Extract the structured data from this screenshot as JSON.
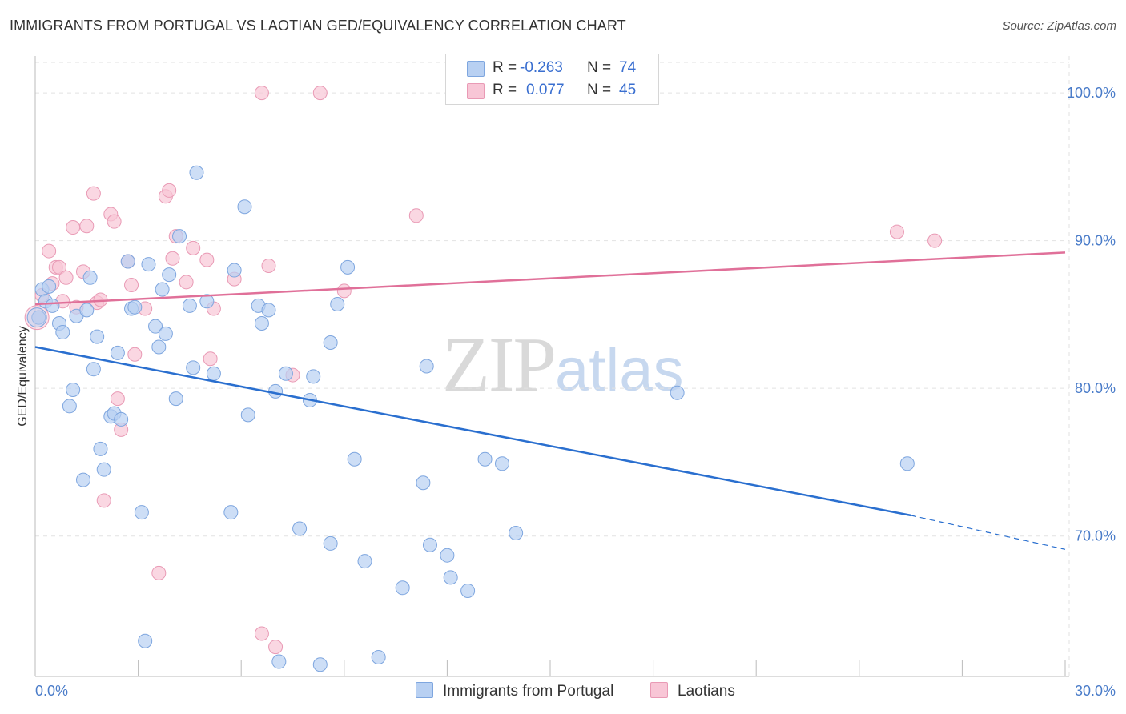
{
  "header": {
    "title": "IMMIGRANTS FROM PORTUGAL VS LAOTIAN GED/EQUIVALENCY CORRELATION CHART",
    "source": "Source: ZipAtlas.com"
  },
  "legend": {
    "rows": [
      {
        "r_label": "R =",
        "r_value": "-0.263",
        "n_label": "N =",
        "n_value": "74"
      },
      {
        "r_label": "R =",
        "r_value": "0.077",
        "n_label": "N =",
        "n_value": "45"
      }
    ],
    "bottom": [
      "Immigrants from Portugal",
      "Laotians"
    ]
  },
  "watermark": {
    "part1": "ZIP",
    "part2": "atlas"
  },
  "colors": {
    "blue_fill": "#b8d0f2",
    "blue_stroke": "#7ea6df",
    "blue_line": "#2a6fcf",
    "pink_fill": "#f8c6d6",
    "pink_stroke": "#e99ab5",
    "pink_line": "#e07099",
    "tick_text": "#4a7cc9",
    "grid": "#e2e2e2"
  },
  "chart_data": {
    "type": "scatter",
    "title": "IMMIGRANTS FROM PORTUGAL VS LAOTIAN GED/EQUIVALENCY CORRELATION CHART",
    "xlabel": "",
    "ylabel": "GED/Equivalency",
    "xlim": [
      0,
      30
    ],
    "ylim": [
      60.5,
      102.5
    ],
    "x_tick_labels": [
      {
        "value": 0,
        "label": "0.0%"
      },
      {
        "value": 30,
        "label": "30.0%"
      }
    ],
    "y_tick_labels": [
      {
        "value": 100,
        "label": "100.0%"
      },
      {
        "value": 90,
        "label": "90.0%"
      },
      {
        "value": 80,
        "label": "80.0%"
      },
      {
        "value": 70,
        "label": "70.0%"
      }
    ],
    "grid": true,
    "series": [
      {
        "name": "Immigrants from Portugal",
        "color": "blue",
        "points": [
          [
            0.2,
            86.7
          ],
          [
            0.3,
            85.9
          ],
          [
            0.4,
            86.9
          ],
          [
            0.5,
            85.6
          ],
          [
            0.7,
            84.4
          ],
          [
            0.8,
            83.8
          ],
          [
            1.0,
            78.8
          ],
          [
            1.1,
            79.9
          ],
          [
            1.2,
            84.9
          ],
          [
            1.4,
            73.8
          ],
          [
            1.5,
            85.3
          ],
          [
            1.6,
            87.5
          ],
          [
            1.7,
            81.3
          ],
          [
            1.8,
            83.5
          ],
          [
            1.9,
            75.9
          ],
          [
            2.0,
            74.5
          ],
          [
            2.2,
            78.1
          ],
          [
            2.3,
            78.3
          ],
          [
            2.4,
            82.4
          ],
          [
            2.5,
            77.9
          ],
          [
            2.7,
            88.6
          ],
          [
            2.8,
            85.4
          ],
          [
            2.9,
            85.5
          ],
          [
            3.1,
            71.6
          ],
          [
            3.2,
            62.9
          ],
          [
            3.3,
            88.4
          ],
          [
            3.5,
            84.2
          ],
          [
            3.6,
            82.8
          ],
          [
            3.7,
            86.7
          ],
          [
            3.8,
            83.7
          ],
          [
            3.9,
            87.7
          ],
          [
            4.1,
            79.3
          ],
          [
            4.2,
            90.3
          ],
          [
            4.5,
            85.6
          ],
          [
            4.6,
            81.4
          ],
          [
            4.7,
            94.6
          ],
          [
            5.0,
            85.9
          ],
          [
            5.2,
            81.0
          ],
          [
            5.7,
            71.6
          ],
          [
            5.8,
            88.0
          ],
          [
            6.1,
            92.3
          ],
          [
            6.2,
            78.2
          ],
          [
            6.5,
            85.6
          ],
          [
            6.6,
            84.4
          ],
          [
            6.8,
            85.3
          ],
          [
            7.0,
            79.8
          ],
          [
            7.1,
            61.5
          ],
          [
            7.3,
            81.0
          ],
          [
            7.7,
            70.5
          ],
          [
            8.0,
            79.2
          ],
          [
            8.1,
            80.8
          ],
          [
            8.3,
            61.3
          ],
          [
            8.6,
            69.5
          ],
          [
            8.6,
            83.1
          ],
          [
            8.8,
            85.7
          ],
          [
            9.1,
            88.2
          ],
          [
            9.3,
            75.2
          ],
          [
            9.6,
            68.3
          ],
          [
            10.0,
            61.8
          ],
          [
            10.7,
            66.5
          ],
          [
            11.3,
            73.6
          ],
          [
            11.4,
            81.5
          ],
          [
            11.5,
            69.4
          ],
          [
            12.0,
            68.7
          ],
          [
            12.1,
            67.2
          ],
          [
            12.6,
            66.3
          ],
          [
            13.1,
            75.2
          ],
          [
            13.6,
            74.9
          ],
          [
            13.9,
            100.0
          ],
          [
            14.0,
            70.2
          ],
          [
            16.7,
            100.0
          ],
          [
            18.7,
            79.7
          ],
          [
            25.4,
            74.9
          ],
          [
            0.1,
            84.8
          ]
        ],
        "trend": {
          "x0": 0,
          "y0": 82.8,
          "x1": 25.5,
          "y1": 71.4,
          "dashed_x1": 30,
          "dashed_y1": 69.1
        }
      },
      {
        "name": "Laotians",
        "color": "pink",
        "points": [
          [
            0.1,
            84.8
          ],
          [
            0.2,
            86.3
          ],
          [
            0.4,
            89.3
          ],
          [
            0.5,
            87.1
          ],
          [
            0.6,
            88.2
          ],
          [
            0.7,
            88.2
          ],
          [
            0.8,
            85.9
          ],
          [
            0.9,
            87.5
          ],
          [
            1.1,
            90.9
          ],
          [
            1.2,
            85.5
          ],
          [
            1.4,
            87.9
          ],
          [
            1.5,
            91.0
          ],
          [
            1.7,
            93.2
          ],
          [
            1.8,
            85.8
          ],
          [
            1.9,
            86.0
          ],
          [
            2.0,
            72.4
          ],
          [
            2.2,
            91.8
          ],
          [
            2.3,
            91.3
          ],
          [
            2.4,
            79.3
          ],
          [
            2.5,
            77.2
          ],
          [
            2.7,
            88.6
          ],
          [
            2.8,
            87.0
          ],
          [
            2.9,
            82.3
          ],
          [
            3.2,
            85.4
          ],
          [
            3.6,
            67.5
          ],
          [
            3.8,
            93.0
          ],
          [
            3.9,
            93.4
          ],
          [
            4.0,
            88.8
          ],
          [
            4.1,
            90.3
          ],
          [
            4.4,
            87.2
          ],
          [
            4.6,
            89.5
          ],
          [
            5.0,
            88.7
          ],
          [
            5.1,
            82.0
          ],
          [
            5.2,
            85.4
          ],
          [
            5.8,
            87.4
          ],
          [
            6.6,
            63.4
          ],
          [
            6.8,
            88.3
          ],
          [
            6.6,
            100.0
          ],
          [
            7.0,
            62.5
          ],
          [
            7.5,
            80.9
          ],
          [
            8.3,
            100.0
          ],
          [
            9.0,
            86.6
          ],
          [
            11.1,
            91.7
          ],
          [
            25.1,
            90.6
          ],
          [
            26.2,
            90.0
          ]
        ],
        "trend": {
          "x0": 0,
          "y0": 85.7,
          "x1": 30,
          "y1": 89.2
        }
      }
    ]
  }
}
